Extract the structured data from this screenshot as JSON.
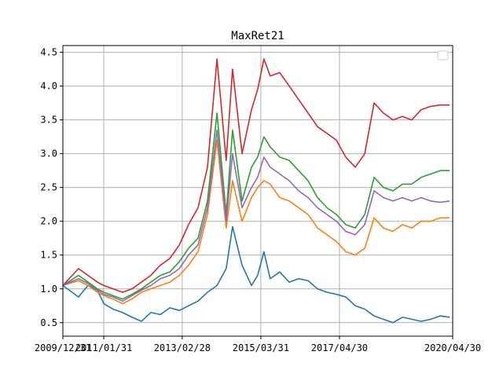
{
  "chart_data": {
    "type": "line",
    "title": "MaxRet21",
    "xlabel": "",
    "ylabel": "",
    "x_start": "2009/12/31",
    "x_end": "2020/04/30",
    "xlim": [
      "2009/12/31",
      "2020/04/30"
    ],
    "ylim": [
      0.3,
      4.6
    ],
    "xticks": [
      {
        "date": "2009/12/31",
        "label": "2009/12/31"
      },
      {
        "date": "2011/01/31",
        "label": "2011/01/31"
      },
      {
        "date": "2013/02/28",
        "label": "2013/02/28"
      },
      {
        "date": "2015/03/31",
        "label": "2015/03/31"
      },
      {
        "date": "2017/04/30",
        "label": "2017/04/30"
      },
      {
        "date": "2020/04/30",
        "label": "2020/04/30"
      }
    ],
    "yticks": [
      {
        "value": 0.5,
        "label": "0.5"
      },
      {
        "value": 1.0,
        "label": "1.0"
      },
      {
        "value": 1.5,
        "label": "1.5"
      },
      {
        "value": 2.0,
        "label": "2.0"
      },
      {
        "value": 2.5,
        "label": "2.5"
      },
      {
        "value": 3.0,
        "label": "3.0"
      },
      {
        "value": 3.5,
        "label": "3.5"
      },
      {
        "value": 4.0,
        "label": "4.0"
      },
      {
        "value": 4.5,
        "label": "4.5"
      }
    ],
    "grid": true,
    "legend": "upper-right (empty)",
    "series": [
      {
        "color": "#1f77b4",
        "x": [
          "2009/12/31",
          "2010/05/31",
          "2010/08/31",
          "2010/11/30",
          "2011/01/31",
          "2011/04/30",
          "2011/07/31",
          "2011/10/31",
          "2012/01/31",
          "2012/04/30",
          "2012/07/31",
          "2012/10/31",
          "2013/01/31",
          "2013/04/30",
          "2013/07/31",
          "2013/10/31",
          "2014/01/31",
          "2014/04/30",
          "2014/06/30",
          "2014/09/30",
          "2014/12/31",
          "2015/02/28",
          "2015/04/30",
          "2015/06/30",
          "2015/09/30",
          "2015/12/31",
          "2016/03/31",
          "2016/06/30",
          "2016/09/30",
          "2016/12/31",
          "2017/03/31",
          "2017/06/30",
          "2017/09/30",
          "2017/12/31",
          "2018/03/31",
          "2018/06/30",
          "2018/09/30",
          "2018/12/31",
          "2019/03/31",
          "2019/06/30",
          "2019/09/30",
          "2019/12/31",
          "2020/03/31"
        ],
        "y": [
          1.05,
          0.88,
          1.05,
          0.98,
          0.78,
          0.7,
          0.65,
          0.58,
          0.52,
          0.65,
          0.62,
          0.72,
          0.68,
          0.75,
          0.82,
          0.95,
          1.05,
          1.3,
          1.92,
          1.35,
          1.05,
          1.2,
          1.55,
          1.15,
          1.25,
          1.1,
          1.15,
          1.12,
          1.0,
          0.95,
          0.92,
          0.88,
          0.75,
          0.7,
          0.6,
          0.55,
          0.5,
          0.58,
          0.55,
          0.52,
          0.55,
          0.6,
          0.58
        ]
      },
      {
        "color": "#ff7f0e",
        "x": [
          "2009/12/31",
          "2010/05/31",
          "2010/08/31",
          "2010/11/30",
          "2011/01/31",
          "2011/04/30",
          "2011/07/31",
          "2011/10/31",
          "2012/01/31",
          "2012/04/30",
          "2012/07/31",
          "2012/10/31",
          "2013/01/31",
          "2013/04/30",
          "2013/07/31",
          "2013/10/31",
          "2014/01/31",
          "2014/04/30",
          "2014/06/30",
          "2014/09/30",
          "2014/12/31",
          "2015/02/28",
          "2015/04/30",
          "2015/06/30",
          "2015/09/30",
          "2015/12/31",
          "2016/03/31",
          "2016/06/30",
          "2016/09/30",
          "2016/12/31",
          "2017/03/31",
          "2017/06/30",
          "2017/09/30",
          "2017/12/31",
          "2018/03/31",
          "2018/06/30",
          "2018/09/30",
          "2018/12/31",
          "2019/03/31",
          "2019/06/30",
          "2019/09/30",
          "2019/12/31",
          "2020/03/31"
        ],
        "y": [
          1.05,
          1.12,
          1.05,
          0.95,
          0.9,
          0.85,
          0.78,
          0.85,
          0.95,
          1.0,
          1.05,
          1.1,
          1.2,
          1.35,
          1.55,
          2.1,
          3.2,
          1.9,
          2.6,
          2.0,
          2.35,
          2.5,
          2.6,
          2.55,
          2.35,
          2.3,
          2.2,
          2.1,
          1.9,
          1.8,
          1.7,
          1.55,
          1.5,
          1.6,
          2.05,
          1.9,
          1.85,
          1.95,
          1.9,
          2.0,
          2.0,
          2.05,
          2.05
        ]
      },
      {
        "color": "#2ca02c",
        "x": [
          "2009/12/31",
          "2010/05/31",
          "2010/08/31",
          "2010/11/30",
          "2011/01/31",
          "2011/04/30",
          "2011/07/31",
          "2011/10/31",
          "2012/01/31",
          "2012/04/30",
          "2012/07/31",
          "2012/10/31",
          "2013/01/31",
          "2013/04/30",
          "2013/07/31",
          "2013/10/31",
          "2014/01/31",
          "2014/04/30",
          "2014/06/30",
          "2014/09/30",
          "2014/12/31",
          "2015/02/28",
          "2015/04/30",
          "2015/06/30",
          "2015/09/30",
          "2015/12/31",
          "2016/03/31",
          "2016/06/30",
          "2016/09/30",
          "2016/12/31",
          "2017/03/31",
          "2017/06/30",
          "2017/09/30",
          "2017/12/31",
          "2018/03/31",
          "2018/06/30",
          "2018/09/30",
          "2018/12/31",
          "2019/03/31",
          "2019/06/30",
          "2019/09/30",
          "2019/12/31",
          "2020/03/31"
        ],
        "y": [
          1.05,
          1.2,
          1.1,
          1.0,
          0.95,
          0.9,
          0.85,
          0.92,
          1.0,
          1.1,
          1.2,
          1.25,
          1.4,
          1.6,
          1.75,
          2.3,
          3.6,
          2.1,
          3.35,
          2.3,
          2.8,
          2.95,
          3.25,
          3.1,
          2.95,
          2.9,
          2.75,
          2.6,
          2.35,
          2.2,
          2.1,
          1.95,
          1.9,
          2.1,
          2.65,
          2.5,
          2.45,
          2.55,
          2.55,
          2.65,
          2.7,
          2.75,
          2.75
        ]
      },
      {
        "color": "#d62728",
        "x": [
          "2009/12/31",
          "2010/05/31",
          "2010/08/31",
          "2010/11/30",
          "2011/01/31",
          "2011/04/30",
          "2011/07/31",
          "2011/10/31",
          "2012/01/31",
          "2012/04/30",
          "2012/07/31",
          "2012/10/31",
          "2013/01/31",
          "2013/04/30",
          "2013/07/31",
          "2013/10/31",
          "2014/01/31",
          "2014/04/30",
          "2014/06/30",
          "2014/09/30",
          "2014/12/31",
          "2015/02/28",
          "2015/04/30",
          "2015/06/30",
          "2015/09/30",
          "2015/12/31",
          "2016/03/31",
          "2016/06/30",
          "2016/09/30",
          "2016/12/31",
          "2017/03/31",
          "2017/06/30",
          "2017/09/30",
          "2017/12/31",
          "2018/03/31",
          "2018/06/30",
          "2018/09/30",
          "2018/12/31",
          "2019/03/31",
          "2019/06/30",
          "2019/09/30",
          "2019/12/31",
          "2020/03/31"
        ],
        "y": [
          1.05,
          1.3,
          1.2,
          1.1,
          1.05,
          1.0,
          0.95,
          1.0,
          1.1,
          1.2,
          1.35,
          1.45,
          1.65,
          1.95,
          2.2,
          2.8,
          4.4,
          2.9,
          4.25,
          3.0,
          3.65,
          3.95,
          4.4,
          4.15,
          4.2,
          4.0,
          3.8,
          3.6,
          3.4,
          3.3,
          3.2,
          2.95,
          2.8,
          3.0,
          3.75,
          3.6,
          3.5,
          3.55,
          3.5,
          3.65,
          3.7,
          3.72,
          3.72
        ]
      },
      {
        "color": "#9467bd",
        "x": [
          "2009/12/31",
          "2010/05/31",
          "2010/08/31",
          "2010/11/30",
          "2011/01/31",
          "2011/04/30",
          "2011/07/31",
          "2011/10/31",
          "2012/01/31",
          "2012/04/30",
          "2012/07/31",
          "2012/10/31",
          "2013/01/31",
          "2013/04/30",
          "2013/07/31",
          "2013/10/31",
          "2014/01/31",
          "2014/04/30",
          "2014/06/30",
          "2014/09/30",
          "2014/12/31",
          "2015/02/28",
          "2015/04/30",
          "2015/06/30",
          "2015/09/30",
          "2015/12/31",
          "2016/03/31",
          "2016/06/30",
          "2016/09/30",
          "2016/12/31",
          "2017/03/31",
          "2017/06/30",
          "2017/09/30",
          "2017/12/31",
          "2018/03/31",
          "2018/06/30",
          "2018/09/30",
          "2018/12/31",
          "2019/03/31",
          "2019/06/30",
          "2019/09/30",
          "2019/12/31",
          "2020/03/31"
        ],
        "y": [
          1.05,
          1.15,
          1.08,
          0.98,
          0.92,
          0.88,
          0.82,
          0.9,
          0.98,
          1.05,
          1.15,
          1.2,
          1.3,
          1.5,
          1.65,
          2.2,
          3.35,
          2.0,
          3.0,
          2.2,
          2.5,
          2.65,
          2.95,
          2.8,
          2.7,
          2.6,
          2.45,
          2.35,
          2.2,
          2.1,
          2.0,
          1.85,
          1.8,
          1.95,
          2.45,
          2.35,
          2.3,
          2.35,
          2.3,
          2.35,
          2.3,
          2.28,
          2.3
        ]
      }
    ]
  }
}
